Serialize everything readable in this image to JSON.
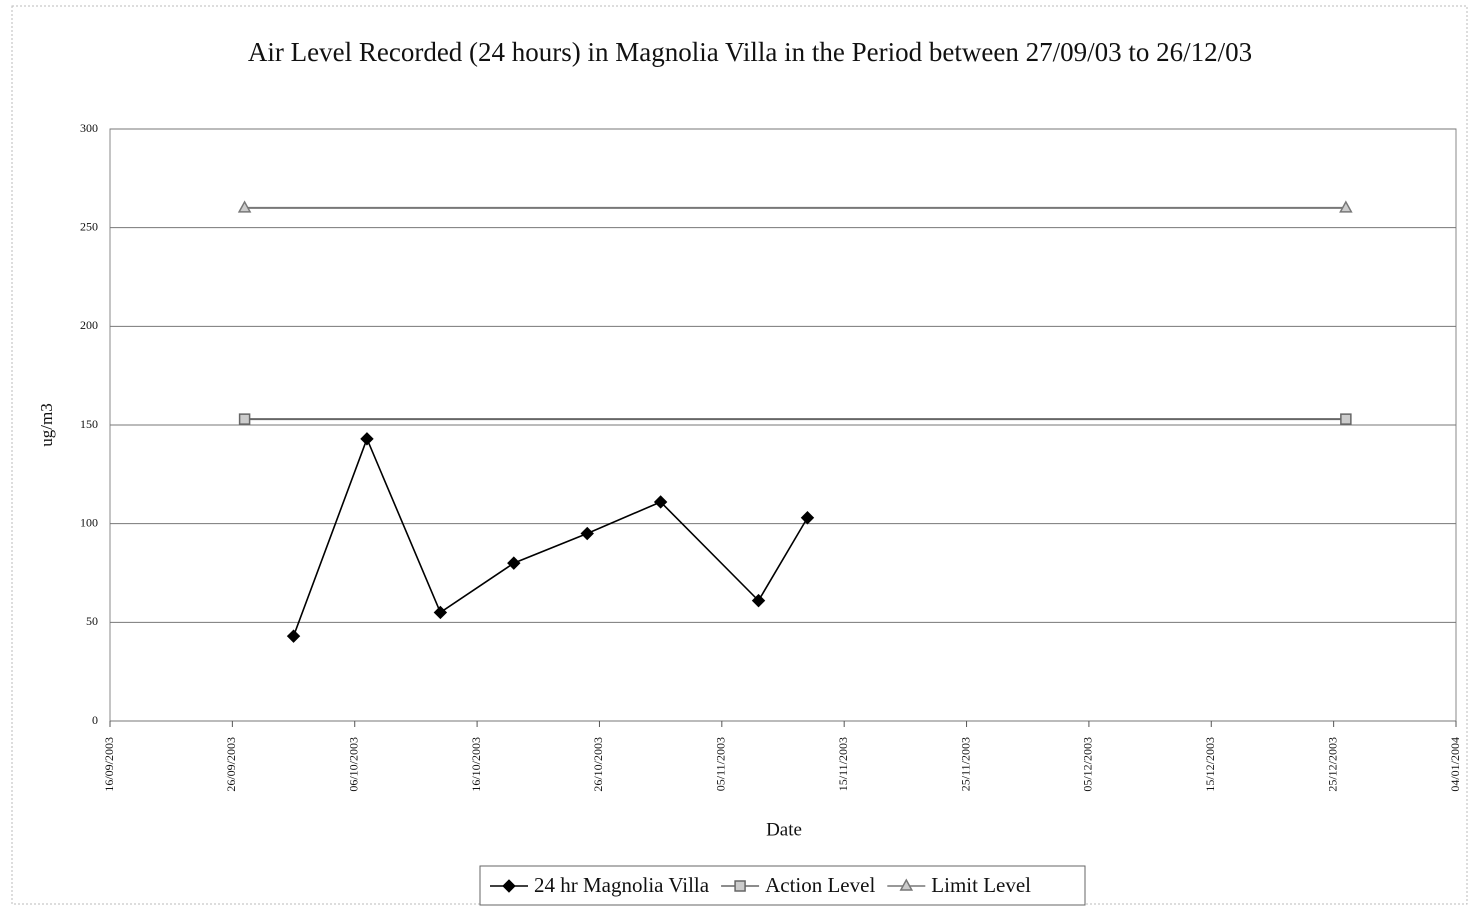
{
  "chart_data": {
    "type": "line",
    "title": "Air Level Recorded (24 hours) in Magnolia Villa in the Period between 27/09/03 to 26/12/03",
    "xlabel": "Date",
    "ylabel": "ug/m3",
    "xlim": [
      "2003-09-16",
      "2004-01-04"
    ],
    "xticks": [
      {
        "value": "2003-09-16",
        "label": "16/09/2003"
      },
      {
        "value": "2003-09-26",
        "label": "26/09/2003"
      },
      {
        "value": "2003-10-06",
        "label": "06/10/2003"
      },
      {
        "value": "2003-10-16",
        "label": "16/10/2003"
      },
      {
        "value": "2003-10-26",
        "label": "26/10/2003"
      },
      {
        "value": "2003-11-05",
        "label": "05/11/2003"
      },
      {
        "value": "2003-11-15",
        "label": "15/11/2003"
      },
      {
        "value": "2003-11-25",
        "label": "25/11/2003"
      },
      {
        "value": "2003-12-05",
        "label": "05/12/2003"
      },
      {
        "value": "2003-12-15",
        "label": "15/12/2003"
      },
      {
        "value": "2003-12-25",
        "label": "25/12/2003"
      },
      {
        "value": "2004-01-04",
        "label": "04/01/2004"
      }
    ],
    "ylim": [
      0,
      300
    ],
    "yticks": [
      0,
      50,
      100,
      150,
      200,
      250,
      300
    ],
    "grid": true,
    "legend": "bottom",
    "series": [
      {
        "name": "24 hr Magnolia Villa",
        "color": "#000000",
        "marker": "diamond",
        "x": [
          "2003-10-01",
          "2003-10-07",
          "2003-10-13",
          "2003-10-19",
          "2003-10-25",
          "2003-10-31",
          "2003-11-08",
          "2003-11-12"
        ],
        "values": [
          43,
          143,
          55,
          80,
          95,
          111,
          61,
          103
        ]
      },
      {
        "name": "Action Level",
        "color": "#666666",
        "marker": "square",
        "x": [
          "2003-09-27",
          "2003-12-26"
        ],
        "values": [
          153,
          153
        ]
      },
      {
        "name": "Limit Level",
        "color": "#777777",
        "marker": "triangle",
        "x": [
          "2003-09-27",
          "2003-12-26"
        ],
        "values": [
          260,
          260
        ]
      }
    ]
  }
}
